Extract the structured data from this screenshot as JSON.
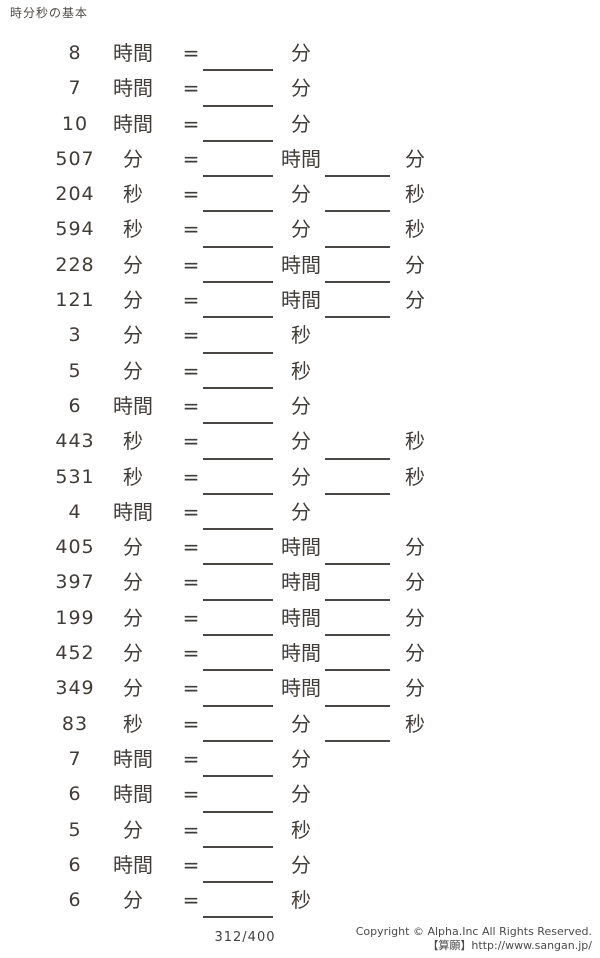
{
  "header": {
    "title": "時分秒の基本"
  },
  "worksheet": {
    "equals": "=",
    "problems": [
      {
        "value": "8",
        "unit": "時間",
        "answer_units": [
          "分"
        ]
      },
      {
        "value": "7",
        "unit": "時間",
        "answer_units": [
          "分"
        ]
      },
      {
        "value": "10",
        "unit": "時間",
        "answer_units": [
          "分"
        ]
      },
      {
        "value": "507",
        "unit": "分",
        "answer_units": [
          "時間",
          "分"
        ]
      },
      {
        "value": "204",
        "unit": "秒",
        "answer_units": [
          "分",
          "秒"
        ]
      },
      {
        "value": "594",
        "unit": "秒",
        "answer_units": [
          "分",
          "秒"
        ]
      },
      {
        "value": "228",
        "unit": "分",
        "answer_units": [
          "時間",
          "分"
        ]
      },
      {
        "value": "121",
        "unit": "分",
        "answer_units": [
          "時間",
          "分"
        ]
      },
      {
        "value": "3",
        "unit": "分",
        "answer_units": [
          "秒"
        ]
      },
      {
        "value": "5",
        "unit": "分",
        "answer_units": [
          "秒"
        ]
      },
      {
        "value": "6",
        "unit": "時間",
        "answer_units": [
          "分"
        ]
      },
      {
        "value": "443",
        "unit": "秒",
        "answer_units": [
          "分",
          "秒"
        ]
      },
      {
        "value": "531",
        "unit": "秒",
        "answer_units": [
          "分",
          "秒"
        ]
      },
      {
        "value": "4",
        "unit": "時間",
        "answer_units": [
          "分"
        ]
      },
      {
        "value": "405",
        "unit": "分",
        "answer_units": [
          "時間",
          "分"
        ]
      },
      {
        "value": "397",
        "unit": "分",
        "answer_units": [
          "時間",
          "分"
        ]
      },
      {
        "value": "199",
        "unit": "分",
        "answer_units": [
          "時間",
          "分"
        ]
      },
      {
        "value": "452",
        "unit": "分",
        "answer_units": [
          "時間",
          "分"
        ]
      },
      {
        "value": "349",
        "unit": "分",
        "answer_units": [
          "時間",
          "分"
        ]
      },
      {
        "value": "83",
        "unit": "秒",
        "answer_units": [
          "分",
          "秒"
        ]
      },
      {
        "value": "7",
        "unit": "時間",
        "answer_units": [
          "分"
        ]
      },
      {
        "value": "6",
        "unit": "時間",
        "answer_units": [
          "分"
        ]
      },
      {
        "value": "5",
        "unit": "分",
        "answer_units": [
          "秒"
        ]
      },
      {
        "value": "6",
        "unit": "時間",
        "answer_units": [
          "分"
        ]
      },
      {
        "value": "6",
        "unit": "分",
        "answer_units": [
          "秒"
        ]
      }
    ]
  },
  "footer": {
    "page_number": "312/400",
    "copyright_line1": "Copyright ©  Alpha.Inc  All  Rights  Reserved.",
    "copyright_line2": "【算願】http://www.sangan.jp/"
  }
}
